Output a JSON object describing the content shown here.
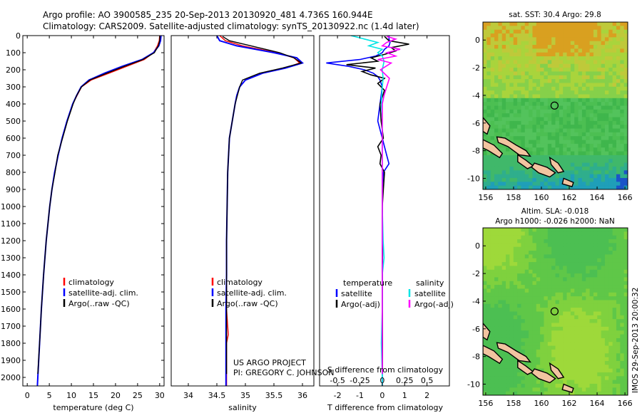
{
  "header": {
    "line1": "Argo profile: AO 3900585_235 20-Sep-2013 20130920_481 4.736S 160.944E",
    "line2": "Climatology: CARS2009. Satellite-adjusted climatology: synTS_20130922.nc (1.4d later)"
  },
  "colors": {
    "climatology": "#ff0000",
    "satellite": "#0000ff",
    "argo": "#000000",
    "salinity_satellite": "#00e5e5",
    "salinity_argo": "#ff00ff",
    "land": "#f2c4a0"
  },
  "chart_data": [
    {
      "type": "line",
      "name": "temperature-profile",
      "xlabel": "temperature (deg C)",
      "ylim": [
        2050,
        0
      ],
      "xlim": [
        -1,
        31
      ],
      "xticks": [
        0,
        5,
        10,
        15,
        20,
        25,
        30
      ],
      "yticks": [
        0,
        100,
        200,
        300,
        400,
        500,
        600,
        700,
        800,
        900,
        1000,
        1100,
        1200,
        1300,
        1400,
        1500,
        1600,
        1700,
        1800,
        1900,
        2000
      ],
      "legend": [
        "climatology",
        "satellite-adj. clim.",
        "Argo(..raw -QC)"
      ],
      "series": [
        {
          "name": "climatology",
          "color": "#ff0000",
          "depth": [
            0,
            30,
            60,
            100,
            140,
            180,
            220,
            260,
            300,
            350,
            400,
            500,
            600,
            700,
            800,
            900,
            1000,
            1200,
            1400,
            1600,
            1800,
            2000,
            2050
          ],
          "values": [
            30,
            29.9,
            29.5,
            28.6,
            26.5,
            22.5,
            18.5,
            14.5,
            12.3,
            11.3,
            10.3,
            9.0,
            7.9,
            7.0,
            6.2,
            5.6,
            5.1,
            4.3,
            3.7,
            3.2,
            2.8,
            2.4,
            2.3
          ]
        },
        {
          "name": "satellite-adj. clim.",
          "color": "#0000ff",
          "depth": [
            0,
            30,
            60,
            100,
            140,
            180,
            220,
            260,
            300,
            350,
            400,
            500,
            600,
            700,
            800,
            900,
            1000,
            1200,
            1400,
            1600,
            1800,
            2000,
            2050
          ],
          "values": [
            30.3,
            30.2,
            29.8,
            28.6,
            26.0,
            21.5,
            17.5,
            14.0,
            12.2,
            11.2,
            10.3,
            9.0,
            7.9,
            7.0,
            6.2,
            5.6,
            5.1,
            4.3,
            3.7,
            3.2,
            2.8,
            2.4,
            2.3
          ]
        },
        {
          "name": "Argo(..raw -QC)",
          "color": "#000000",
          "depth": [
            5,
            30,
            60,
            100,
            140,
            180,
            220,
            260,
            300,
            350,
            400,
            500,
            600,
            700,
            800,
            900,
            1000,
            1200,
            1400,
            1600,
            1800,
            1980
          ],
          "values": [
            30.1,
            30.0,
            29.7,
            28.8,
            26.2,
            22.0,
            18.0,
            14.2,
            12.3,
            11.2,
            10.4,
            9.1,
            8.0,
            6.9,
            6.3,
            5.6,
            5.1,
            4.3,
            3.7,
            3.2,
            2.8,
            2.4
          ]
        }
      ]
    },
    {
      "type": "line",
      "name": "salinity-profile",
      "xlabel": "salinity",
      "ylim": [
        2050,
        0
      ],
      "xlim": [
        33.7,
        36.2
      ],
      "xticks": [
        34,
        34.5,
        35,
        35.5,
        36
      ],
      "xticklabels": [
        "34",
        "34.5",
        "35",
        "35.5",
        "36"
      ],
      "legend": [
        "climatology",
        "satellite-adj. clim.",
        "Argo(..raw -QC)"
      ],
      "annotation": [
        "US ARGO PROJECT",
        "PI: GREGORY C. JOHNSON"
      ],
      "series": [
        {
          "name": "climatology",
          "color": "#ff0000",
          "depth": [
            0,
            30,
            60,
            100,
            130,
            160,
            190,
            220,
            260,
            300,
            350,
            400,
            500,
            600,
            800,
            1000,
            1200,
            1400,
            1600,
            1750,
            1800,
            2000,
            2050
          ],
          "values": [
            34.55,
            34.65,
            34.95,
            35.55,
            35.85,
            35.95,
            35.7,
            35.3,
            35.0,
            34.9,
            34.85,
            34.82,
            34.77,
            34.72,
            34.69,
            34.68,
            34.67,
            34.67,
            34.67,
            34.7,
            34.67,
            34.67,
            34.67
          ]
        },
        {
          "name": "satellite-adj. clim.",
          "color": "#0000ff",
          "depth": [
            0,
            30,
            60,
            100,
            130,
            160,
            190,
            220,
            260,
            300,
            350,
            400,
            500,
            600,
            800,
            1000,
            1200,
            1400,
            1600,
            1800,
            2000,
            2050
          ],
          "values": [
            34.5,
            34.55,
            34.85,
            35.5,
            35.9,
            36.0,
            35.7,
            35.3,
            35.0,
            34.9,
            34.85,
            34.82,
            34.77,
            34.72,
            34.69,
            34.68,
            34.67,
            34.67,
            34.66,
            34.66,
            34.66,
            34.66
          ]
        },
        {
          "name": "Argo(..raw -QC)",
          "color": "#000000",
          "depth": [
            5,
            30,
            60,
            100,
            130,
            160,
            190,
            220,
            260,
            300,
            350,
            400,
            500,
            600,
            800,
            1000,
            1200,
            1400,
            1600,
            1800,
            1980
          ],
          "values": [
            34.6,
            34.72,
            35.1,
            35.6,
            35.85,
            35.98,
            35.65,
            35.25,
            34.95,
            34.9,
            34.86,
            34.82,
            34.77,
            34.72,
            34.69,
            34.68,
            34.67,
            34.67,
            34.67,
            34.67,
            34.67
          ]
        }
      ]
    },
    {
      "type": "line",
      "name": "difference-profile",
      "xlabel": "T difference from climatology",
      "xlabel2": "S difference from climatology",
      "ylim": [
        2050,
        0
      ],
      "xlim": [
        -2.8,
        3.0
      ],
      "xticks": [
        -2,
        -1,
        0,
        1,
        2
      ],
      "sxticks": [
        -0.5,
        -0.25,
        0,
        0.25,
        0.5
      ],
      "sxticklabels": [
        "-0.5",
        "-0.25",
        "0",
        "0.25",
        "0.5"
      ],
      "legend_temperature": {
        "title": "temperature",
        "items": [
          "satellite",
          "Argo(-adj)"
        ]
      },
      "legend_salinity": {
        "title": "salinity",
        "items": [
          "satellite",
          "Argo(-adj)"
        ]
      },
      "series": [
        {
          "name": "satellite",
          "group": "temperature",
          "color": "#0000ff",
          "depth": [
            0,
            20,
            40,
            60,
            80,
            100,
            120,
            140,
            160,
            180,
            200,
            220,
            240,
            260,
            300,
            400,
            500,
            600,
            700,
            750,
            800,
            900,
            1000,
            1200,
            1400,
            1600,
            1800,
            2000,
            2050
          ],
          "values": [
            0.3,
            0.3,
            0.35,
            0.3,
            0.1,
            0,
            -0.3,
            -1.0,
            -2.5,
            -1.5,
            -0.8,
            -0.4,
            -0.2,
            -0.1,
            0,
            -0.1,
            -0.2,
            0,
            0.2,
            0.3,
            0.05,
            0,
            0,
            0,
            0,
            0,
            0,
            0,
            0
          ]
        },
        {
          "name": "Argo(-adj)",
          "group": "temperature",
          "color": "#000000",
          "depth": [
            5,
            30,
            50,
            70,
            90,
            110,
            130,
            150,
            170,
            190,
            210,
            230,
            250,
            280,
            320,
            400,
            500,
            600,
            650,
            700,
            750,
            800,
            900,
            1000,
            1200,
            1400,
            1600,
            1800,
            1980
          ],
          "values": [
            0.1,
            0.3,
            1.2,
            0.4,
            0.6,
            0.1,
            -0.5,
            -0.2,
            -1.6,
            -0.3,
            -0.9,
            -0.5,
            0.1,
            -0.2,
            0.1,
            -0.1,
            -0.05,
            0.05,
            -0.2,
            -0.05,
            -0.1,
            0.1,
            0.05,
            0.0,
            0.02,
            0.0,
            0.0,
            0.01,
            0.0
          ]
        },
        {
          "name": "satellite",
          "group": "salinity",
          "color": "#00e5e5",
          "depth": [
            0,
            20,
            40,
            60,
            80,
            100,
            120,
            150,
            200,
            250,
            300,
            400,
            500,
            700,
            1000,
            1200,
            1300,
            1400,
            1600,
            1800,
            2000,
            2050
          ],
          "values": [
            -0.35,
            -0.2,
            -0.05,
            -0.15,
            0.0,
            -0.05,
            0.0,
            0.02,
            0.0,
            0.01,
            0.0,
            -0.01,
            0.0,
            0.0,
            0.0,
            0.01,
            0.02,
            0.0,
            0.0,
            -0.01,
            0.0,
            0.0
          ]
        },
        {
          "name": "Argo(-adj)",
          "group": "salinity",
          "color": "#ff00ff",
          "depth": [
            5,
            20,
            40,
            60,
            80,
            100,
            120,
            140,
            160,
            200,
            250,
            300,
            350,
            400,
            500,
            600,
            800,
            1000,
            1200,
            1400,
            1600,
            1800,
            1980
          ],
          "values": [
            0.05,
            0.15,
            0.05,
            0.0,
            0.2,
            0.05,
            0.15,
            -0.05,
            0.1,
            -0.02,
            0.08,
            0.05,
            0.02,
            0.0,
            0.0,
            0.0,
            0.0,
            0.0,
            0.0,
            0.0,
            0.0,
            0.0,
            0.0
          ]
        }
      ]
    },
    {
      "type": "heatmap",
      "name": "sst-map",
      "title": "sat. SST: 30.4 Argo: 29.8",
      "xlim": [
        155.8,
        166.2
      ],
      "ylim": [
        -10.8,
        1.3
      ],
      "xticks": [
        156,
        158,
        160,
        162,
        164,
        166
      ],
      "yticks": [
        0,
        -2,
        -4,
        -6,
        -8,
        -10
      ],
      "profile_location": [
        160.944,
        -4.736
      ]
    },
    {
      "type": "heatmap",
      "name": "sla-map",
      "title": "Altim. SLA: -0.018",
      "subtitle": "Argo h1000: -0.026 h2000: NaN",
      "xlim": [
        155.8,
        166.2
      ],
      "ylim": [
        -10.8,
        1.3
      ],
      "xticks": [
        156,
        158,
        160,
        162,
        164,
        166
      ],
      "yticks": [
        0,
        -2,
        -4,
        -6,
        -8,
        -10
      ],
      "profile_location": [
        160.944,
        -4.736
      ]
    }
  ],
  "footer": {
    "side_label": "IMOS 29-Sep-2013 20:00:32"
  }
}
